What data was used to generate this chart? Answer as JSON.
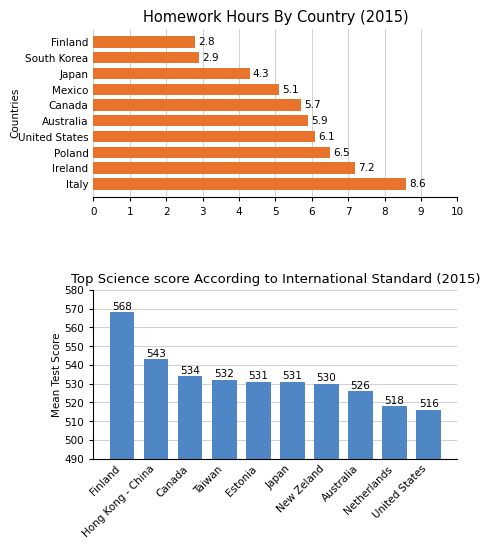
{
  "chart1": {
    "title": "Homework Hours By Country (2015)",
    "countries": [
      "Italy",
      "Ireland",
      "Poland",
      "United States",
      "Australia",
      "Canada",
      "Mexico",
      "Japan",
      "South Korea",
      "Finland"
    ],
    "values": [
      8.6,
      7.2,
      6.5,
      6.1,
      5.9,
      5.7,
      5.1,
      4.3,
      2.9,
      2.8
    ],
    "bar_color": "#E8732A",
    "ylabel": "Countries",
    "xlim": [
      0,
      10
    ],
    "xticks": [
      0,
      1,
      2,
      3,
      4,
      5,
      6,
      7,
      8,
      9,
      10
    ],
    "label_fontsize": 7.5,
    "title_fontsize": 10.5
  },
  "chart2": {
    "title": "Top Science score According to International Standard (2015)",
    "countries": [
      "Finland",
      "Hong Kong - China",
      "Canada",
      "Taiwan",
      "Estonia",
      "Japan",
      "New Zeland",
      "Australia",
      "Netherlands",
      "United States"
    ],
    "values": [
      568,
      543,
      534,
      532,
      531,
      531,
      530,
      526,
      518,
      516
    ],
    "bar_color": "#4F86C6",
    "ylabel": "Mean Test Score",
    "ylim": [
      490,
      580
    ],
    "yticks": [
      490,
      500,
      510,
      520,
      530,
      540,
      550,
      560,
      570,
      580
    ],
    "label_fontsize": 7.5,
    "title_fontsize": 9.5
  },
  "bg_color": "#FFFFFF",
  "grid_color": "#D0D0D0"
}
